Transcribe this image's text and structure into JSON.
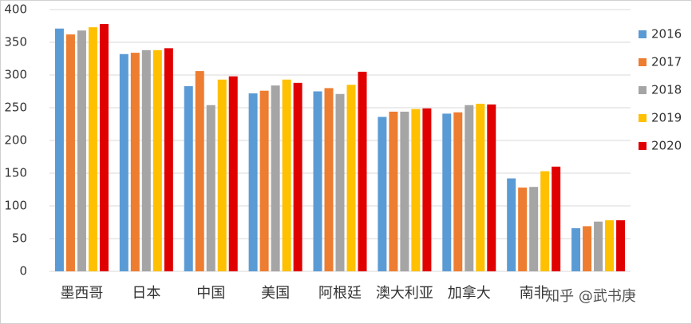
{
  "chart_data": {
    "type": "bar",
    "categories": [
      "墨西哥",
      "日本",
      "中国",
      "美国",
      "阿根廷",
      "澳大利亚",
      "加拿大",
      "南非",
      null
    ],
    "series": [
      {
        "name": "2016",
        "color": "#5b9bd5",
        "values": [
          371,
          332,
          283,
          272,
          275,
          236,
          241,
          142,
          66
        ]
      },
      {
        "name": "2017",
        "color": "#ed7d31",
        "values": [
          362,
          334,
          306,
          276,
          280,
          244,
          243,
          128,
          69
        ]
      },
      {
        "name": "2018",
        "color": "#a5a5a5",
        "values": [
          368,
          338,
          254,
          284,
          271,
          244,
          254,
          129,
          76
        ]
      },
      {
        "name": "2019",
        "color": "#ffc000",
        "values": [
          373,
          338,
          293,
          293,
          285,
          248,
          256,
          153,
          78
        ]
      },
      {
        "name": "2020",
        "color": "#e00000",
        "values": [
          378,
          341,
          298,
          288,
          305,
          249,
          255,
          160,
          78
        ]
      }
    ],
    "ylim": [
      0,
      400
    ],
    "yticks": [
      0,
      50,
      100,
      150,
      200,
      250,
      300,
      350,
      400
    ],
    "grid": true,
    "legend": "right",
    "watermark": "知乎 @武书庚"
  }
}
